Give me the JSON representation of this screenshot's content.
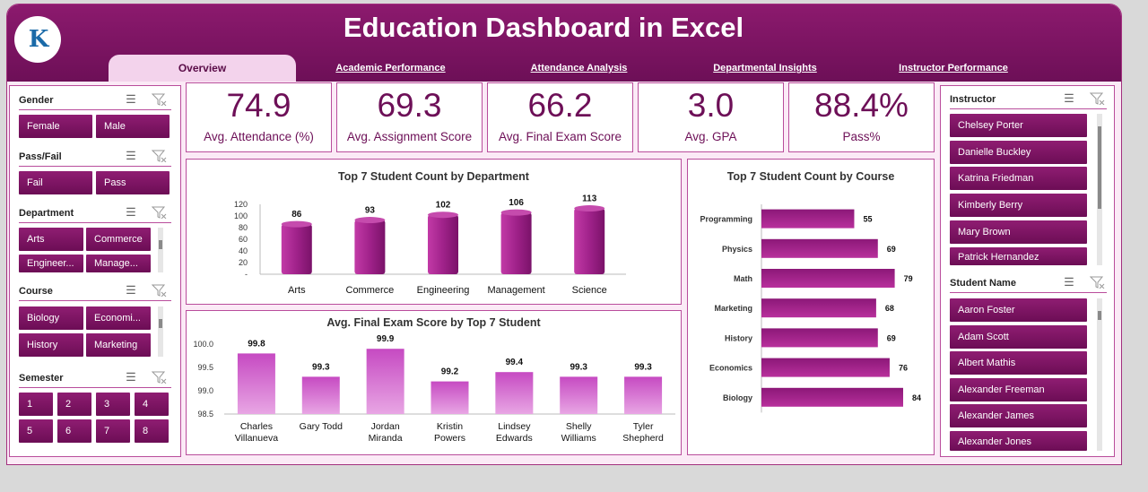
{
  "app": {
    "title": "Education Dashboard in Excel"
  },
  "tabs": [
    {
      "label": "Overview",
      "active": true
    },
    {
      "label": "Academic Performance"
    },
    {
      "label": "Attendance Analysis"
    },
    {
      "label": "Departmental Insights"
    },
    {
      "label": "Instructor Performance"
    }
  ],
  "filters": {
    "gender": {
      "title": "Gender",
      "options": [
        "Female",
        "Male"
      ]
    },
    "passfail": {
      "title": "Pass/Fail",
      "options": [
        "Fail",
        "Pass"
      ]
    },
    "department": {
      "title": "Department",
      "options": [
        "Arts",
        "Commerce",
        "Engineer...",
        "Manage..."
      ]
    },
    "course": {
      "title": "Course",
      "options": [
        "Biology",
        "Economi...",
        "History",
        "Marketing"
      ]
    },
    "semester": {
      "title": "Semester",
      "options": [
        "1",
        "2",
        "3",
        "4",
        "5",
        "6",
        "7",
        "8"
      ]
    },
    "instructor": {
      "title": "Instructor",
      "options": [
        "Chelsey Porter",
        "Danielle Buckley",
        "Katrina Friedman",
        "Kimberly Berry",
        "Mary Brown",
        "Patrick Hernandez"
      ]
    },
    "student": {
      "title": "Student Name",
      "options": [
        "Aaron Foster",
        "Adam Scott",
        "Albert Mathis",
        "Alexander Freeman",
        "Alexander James",
        "Alexander Jones"
      ]
    }
  },
  "kpis": [
    {
      "value": "74.9",
      "label": "Avg. Attendance (%)"
    },
    {
      "value": "69.3",
      "label": "Avg. Assignment Score"
    },
    {
      "value": "66.2",
      "label": "Avg. Final Exam Score"
    },
    {
      "value": "3.0",
      "label": "Avg. GPA"
    },
    {
      "value": "88.4%",
      "label": "Pass%"
    }
  ],
  "colors": {
    "accent": "#6d0f57",
    "header": "#8c1a6e",
    "bar": "#a0228a",
    "bar_light": "#d163c8"
  },
  "chart_data": [
    {
      "type": "bar",
      "title": "Top 7 Student Count by Department",
      "categories": [
        "Arts",
        "Commerce",
        "Engineering",
        "Management",
        "Science"
      ],
      "values": [
        86,
        93,
        102,
        106,
        113
      ],
      "ylim": [
        0,
        120
      ],
      "yticks": [
        "120",
        "100",
        "80",
        "60",
        "40",
        "20",
        "-"
      ],
      "grid": false
    },
    {
      "type": "bar",
      "orientation": "horizontal",
      "title": "Top 7 Student Count by Course",
      "categories": [
        "Programming",
        "Physics",
        "Math",
        "Marketing",
        "History",
        "Economics",
        "Biology"
      ],
      "values": [
        55,
        69,
        79,
        68,
        69,
        76,
        84
      ],
      "grid": false
    },
    {
      "type": "bar",
      "title": "Avg. Final Exam Score by Top 7 Student",
      "categories": [
        "Charles Villanueva",
        "Gary Todd",
        "Jordan Miranda",
        "Kristin Powers",
        "Lindsey Edwards",
        "Shelly Williams",
        "Tyler Shepherd"
      ],
      "values": [
        99.8,
        99.3,
        99.9,
        99.2,
        99.4,
        99.3,
        99.3
      ],
      "ylim": [
        98.5,
        100.0
      ],
      "yticks": [
        "100.0",
        "99.5",
        "99.0",
        "98.5"
      ],
      "grid": false
    }
  ]
}
